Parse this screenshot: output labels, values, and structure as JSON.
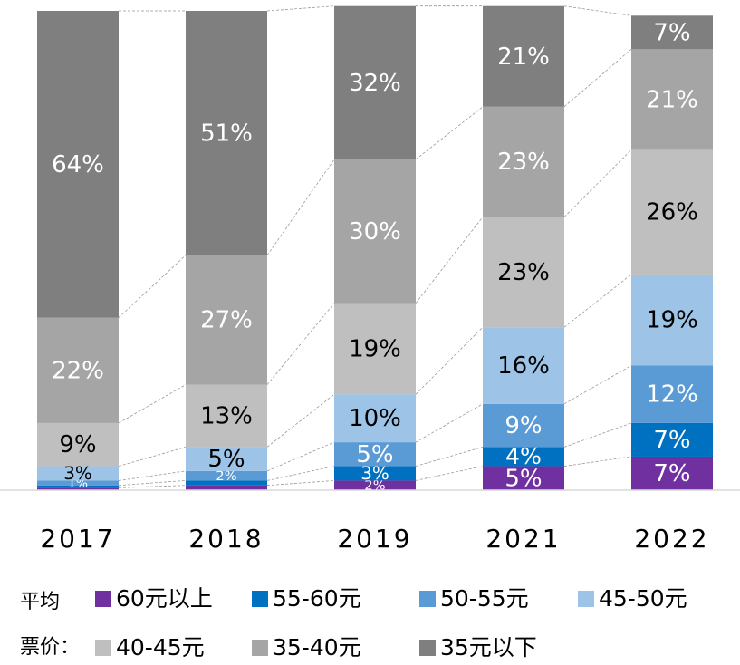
{
  "chart_data": {
    "type": "stacked_bar",
    "categories": [
      "2017",
      "2018",
      "2019",
      "2021",
      "2022"
    ],
    "ylim": [
      0,
      100
    ],
    "legend_title": [
      "平均",
      "票价："
    ],
    "series": [
      {
        "name": "60元以上",
        "color": "#7030a0",
        "values": [
          0.5,
          1,
          2,
          5,
          7
        ],
        "value_labels": [
          null,
          null,
          "2%",
          "5%",
          "7%"
        ]
      },
      {
        "name": "55-60元",
        "color": "#0070c0",
        "values": [
          0.5,
          1,
          3,
          4,
          7
        ],
        "value_labels": [
          null,
          null,
          "3%",
          "4%",
          "7%"
        ]
      },
      {
        "name": "50-55元",
        "color": "#5b9bd5",
        "values": [
          1,
          2,
          5,
          9,
          12
        ],
        "value_labels": [
          "1%",
          "2%",
          "5%",
          "9%",
          "12%"
        ]
      },
      {
        "name": "45-50元",
        "color": "#9dc3e6",
        "values": [
          3,
          5,
          10,
          16,
          19
        ],
        "value_labels": [
          "3%",
          "5%",
          "10%",
          "16%",
          "19%"
        ]
      },
      {
        "name": "40-45元",
        "color": "#bfbfbf",
        "values": [
          9,
          13,
          19,
          23,
          26
        ],
        "value_labels": [
          "9%",
          "13%",
          "19%",
          "23%",
          "26%"
        ]
      },
      {
        "name": "35-40元",
        "color": "#a5a5a5",
        "values": [
          22,
          27,
          30,
          23,
          21
        ],
        "value_labels": [
          "22%",
          "27%",
          "30%",
          "23%",
          "21%"
        ]
      },
      {
        "name": "35元以下",
        "color": "#7f7f7f",
        "values": [
          64,
          51,
          32,
          21,
          7
        ],
        "value_labels": [
          "64%",
          "51%",
          "32%",
          "21%",
          "7%"
        ]
      }
    ]
  }
}
